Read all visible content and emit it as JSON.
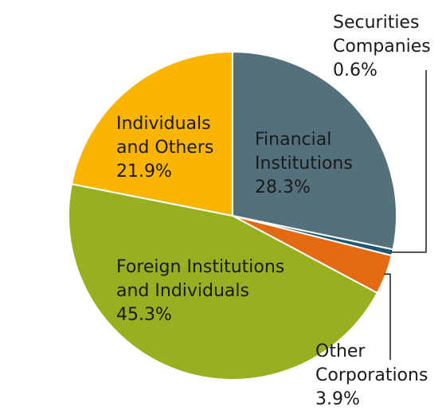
{
  "chart_data": {
    "type": "pie",
    "title": "",
    "start_angle_deg": 90,
    "direction": "clockwise",
    "slices": [
      {
        "label_lines": [
          "Financial",
          "Institutions"
        ],
        "value": 28.3,
        "value_label": "28.3%",
        "color": "#54707c"
      },
      {
        "label_lines": [
          "Securities",
          "Companies"
        ],
        "value": 0.6,
        "value_label": "0.6%",
        "color": "#1e5870"
      },
      {
        "label_lines": [
          "Other",
          "Corporations"
        ],
        "value": 3.9,
        "value_label": "3.9%",
        "color": "#e36a12"
      },
      {
        "label_lines": [
          "Foreign Institutions",
          "and Individuals"
        ],
        "value": 45.3,
        "value_label": "45.3%",
        "color": "#96b020"
      },
      {
        "label_lines": [
          "Individuals",
          "and Others"
        ],
        "value": 21.9,
        "value_label": "21.9%",
        "color": "#fbb400"
      }
    ],
    "leader_line_color": "#1a1a1a",
    "slice_border_color": "#ffffff"
  }
}
